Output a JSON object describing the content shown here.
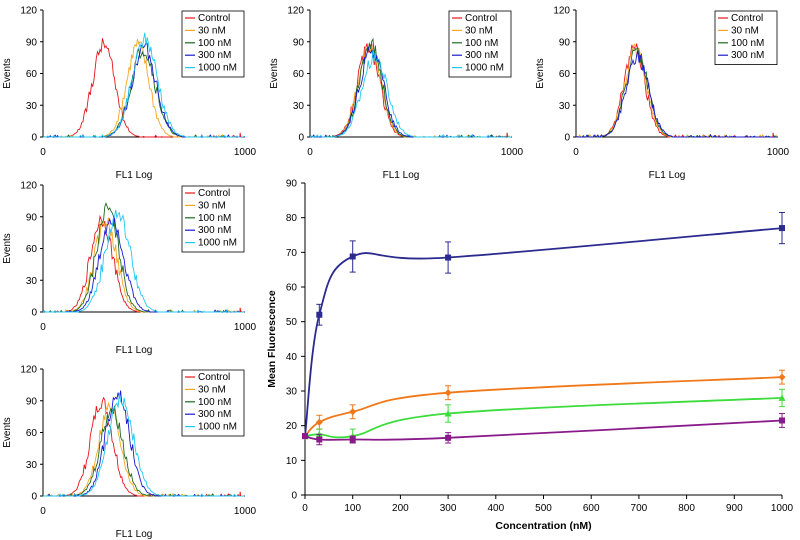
{
  "colors": {
    "Control": "#e8141c",
    "30 nM": "#f5a623",
    "100 nM": "#1e6b1e",
    "300 nM": "#1a1ad0",
    "1000 nM": "#22c8f0",
    "line_blue": "#2a2a8f",
    "line_orange": "#f07818",
    "line_green": "#3ddc3d",
    "line_purple": "#8a1a8a"
  },
  "chart_data": [
    {
      "type": "line",
      "id": "hist-1",
      "xlabel": "FL1 Log",
      "ylabel": "Events",
      "xlim": [
        0,
        1000
      ],
      "ylim": [
        0,
        120
      ],
      "xticks": [
        "0",
        "1000"
      ],
      "yticks": [
        "0",
        "30",
        "60",
        "90",
        "120"
      ],
      "legend": [
        "Control",
        "30 nM",
        "100 nM",
        "300 nM",
        "1000 nM"
      ],
      "legend_position": "top-right",
      "series": [
        {
          "name": "Control",
          "peak_x": 300,
          "peak_y": 88,
          "width": 55
        },
        {
          "name": "30 nM",
          "peak_x": 470,
          "peak_y": 88,
          "width": 55
        },
        {
          "name": "100 nM",
          "peak_x": 495,
          "peak_y": 83,
          "width": 60
        },
        {
          "name": "300 nM",
          "peak_x": 500,
          "peak_y": 85,
          "width": 60
        },
        {
          "name": "1000 nM",
          "peak_x": 505,
          "peak_y": 92,
          "width": 62
        }
      ]
    },
    {
      "type": "line",
      "id": "hist-2",
      "xlabel": "FL1 Log",
      "ylabel": "Events",
      "xlim": [
        0,
        1000
      ],
      "ylim": [
        0,
        120
      ],
      "xticks": [
        "0",
        "1000"
      ],
      "yticks": [
        "0",
        "30",
        "60",
        "90",
        "120"
      ],
      "legend": [
        "Control",
        "30 nM",
        "100 nM",
        "300 nM",
        "1000 nM"
      ],
      "legend_position": "top-right",
      "series": [
        {
          "name": "Control",
          "peak_x": 290,
          "peak_y": 85,
          "width": 55
        },
        {
          "name": "30 nM",
          "peak_x": 295,
          "peak_y": 86,
          "width": 55
        },
        {
          "name": "100 nM",
          "peak_x": 300,
          "peak_y": 88,
          "width": 55
        },
        {
          "name": "300 nM",
          "peak_x": 305,
          "peak_y": 82,
          "width": 58
        },
        {
          "name": "1000 nM",
          "peak_x": 320,
          "peak_y": 76,
          "width": 62
        }
      ]
    },
    {
      "type": "line",
      "id": "hist-3",
      "xlabel": "FL1 Log",
      "ylabel": "Events",
      "xlim": [
        0,
        1000
      ],
      "ylim": [
        0,
        120
      ],
      "xticks": [
        "0",
        "1000"
      ],
      "yticks": [
        "0",
        "30",
        "60",
        "90",
        "120"
      ],
      "legend": [
        "Control",
        "30 nM",
        "100 nM",
        "300 nM"
      ],
      "legend_position": "top-right",
      "series": [
        {
          "name": "Control",
          "peak_x": 290,
          "peak_y": 86,
          "width": 52
        },
        {
          "name": "30 nM",
          "peak_x": 295,
          "peak_y": 82,
          "width": 54
        },
        {
          "name": "100 nM",
          "peak_x": 300,
          "peak_y": 80,
          "width": 55
        },
        {
          "name": "300 nM",
          "peak_x": 305,
          "peak_y": 76,
          "width": 56
        }
      ]
    },
    {
      "type": "line",
      "id": "hist-4",
      "xlabel": "FL1 Log",
      "ylabel": "Events",
      "xlim": [
        0,
        1000
      ],
      "ylim": [
        0,
        120
      ],
      "xticks": [
        "0",
        "1000"
      ],
      "yticks": [
        "0",
        "30",
        "60",
        "90",
        "120"
      ],
      "legend": [
        "Control",
        "30 nM",
        "100 nM",
        "300 nM",
        "1000 nM"
      ],
      "legend_position": "top-right",
      "series": [
        {
          "name": "Control",
          "peak_x": 290,
          "peak_y": 88,
          "width": 55
        },
        {
          "name": "30 nM",
          "peak_x": 310,
          "peak_y": 86,
          "width": 55
        },
        {
          "name": "100 nM",
          "peak_x": 320,
          "peak_y": 98,
          "width": 55
        },
        {
          "name": "300 nM",
          "peak_x": 340,
          "peak_y": 88,
          "width": 58
        },
        {
          "name": "1000 nM",
          "peak_x": 370,
          "peak_y": 93,
          "width": 62
        }
      ]
    },
    {
      "type": "line",
      "id": "hist-5",
      "xlabel": "FL1 Log",
      "ylabel": "Events",
      "xlim": [
        0,
        1000
      ],
      "ylim": [
        0,
        120
      ],
      "xticks": [
        "0",
        "1000"
      ],
      "yticks": [
        "0",
        "30",
        "60",
        "90",
        "120"
      ],
      "legend": [
        "Control",
        "30 nM",
        "100 nM",
        "300 nM",
        "1000 nM"
      ],
      "legend_position": "top-right",
      "series": [
        {
          "name": "Control",
          "peak_x": 290,
          "peak_y": 88,
          "width": 55
        },
        {
          "name": "30 nM",
          "peak_x": 330,
          "peak_y": 84,
          "width": 55
        },
        {
          "name": "100 nM",
          "peak_x": 340,
          "peak_y": 82,
          "width": 56
        },
        {
          "name": "300 nM",
          "peak_x": 370,
          "peak_y": 98,
          "width": 58
        },
        {
          "name": "1000 nM",
          "peak_x": 385,
          "peak_y": 92,
          "width": 62
        }
      ]
    },
    {
      "type": "line",
      "id": "mean-fluorescence",
      "xlabel": "Concentration (nM)",
      "ylabel": "Mean Fluorescence",
      "xlim": [
        0,
        1000
      ],
      "ylim": [
        0,
        90
      ],
      "xticks": [
        "0",
        "100",
        "200",
        "300",
        "400",
        "500",
        "600",
        "700",
        "800",
        "900",
        "1000"
      ],
      "yticks": [
        "0",
        "10",
        "20",
        "30",
        "40",
        "50",
        "60",
        "70",
        "80",
        "90"
      ],
      "x": [
        0,
        30,
        100,
        300,
        1000
      ],
      "series": [
        {
          "name": "blue",
          "marker": "square",
          "values": [
            17,
            52,
            68.8,
            68.5,
            77
          ],
          "errors": [
            0,
            3,
            4.5,
            4.5,
            4.5
          ]
        },
        {
          "name": "orange",
          "marker": "diamond",
          "values": [
            17,
            21,
            24,
            29.5,
            34
          ],
          "errors": [
            0,
            2,
            2,
            2,
            2
          ]
        },
        {
          "name": "green",
          "marker": "triangle",
          "values": [
            17,
            17.5,
            17,
            23.5,
            28
          ],
          "errors": [
            0,
            1.5,
            2,
            2.5,
            2.5
          ]
        },
        {
          "name": "purple",
          "marker": "square",
          "values": [
            17,
            16,
            16,
            16.5,
            21.5
          ],
          "errors": [
            0,
            1.5,
            1,
            1.5,
            2
          ]
        }
      ]
    }
  ]
}
